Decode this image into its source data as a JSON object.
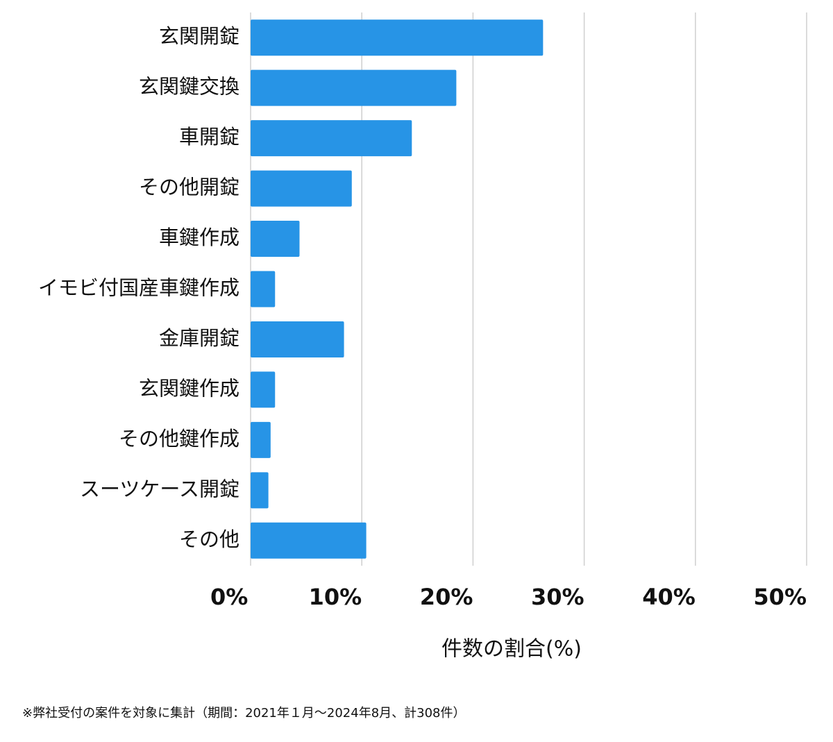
{
  "chart_data": {
    "type": "bar",
    "orientation": "horizontal",
    "categories": [
      "玄関開錠",
      "玄関鍵交換",
      "車開錠",
      "その他開錠",
      "車鍵作成",
      "イモビ付国産車鍵作成",
      "金庫開錠",
      "玄関鍵作成",
      "その他鍵作成",
      "スーツケース開錠",
      "その他"
    ],
    "values": [
      26.3,
      18.5,
      14.5,
      9.1,
      4.4,
      2.2,
      8.4,
      2.2,
      1.8,
      1.6,
      10.4
    ],
    "color": "#2794e6",
    "xlim": [
      0,
      50
    ],
    "xticks": [
      {
        "value": 0,
        "label": "0%"
      },
      {
        "value": 10,
        "label": "10%"
      },
      {
        "value": 20,
        "label": "20%"
      },
      {
        "value": 30,
        "label": "30%"
      },
      {
        "value": 40,
        "label": "40%"
      },
      {
        "value": 50,
        "label": "50%"
      }
    ],
    "x_label": "件数の割合(%)",
    "grid": true,
    "footnote": "※弊社受付の案件を対象に集計（期間：2021年１月〜2024年8月、計308件）"
  }
}
